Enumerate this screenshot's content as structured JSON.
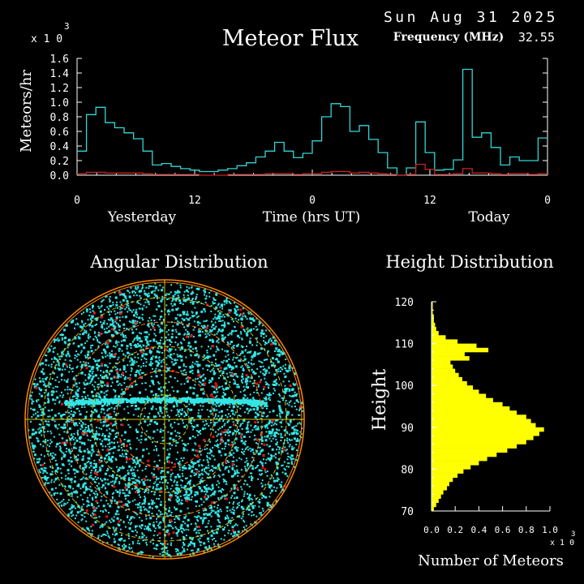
{
  "header": {
    "title": "Meteor Flux",
    "date": "Sun Aug 31 2025",
    "frequency_label": "Frequency (MHz)",
    "frequency_value": "32.55",
    "multiplier_x": "x 1 0",
    "multiplier_exp": "3"
  },
  "colors": {
    "background": "#000000",
    "flux_series": "#33d6d6",
    "secondary_series": "#cc2222",
    "height_bars": "#ffff00",
    "axis": "#ffffff",
    "polar_rings": "#ff8800",
    "polar_rings_inner": "#d4c000",
    "polar_dots": "#33e6e6",
    "polar_red_dots": "#e01010"
  },
  "chart_data": [
    {
      "type": "line",
      "name": "flux",
      "title": "Meteor Flux",
      "ylabel": "Meteors/hr",
      "xlabel": "Time (hrs UT)",
      "x_group_labels": [
        "Yesterday",
        "Time (hrs UT)",
        "Today"
      ],
      "x_tick_labels": [
        "0",
        "12",
        "0",
        "12",
        "0"
      ],
      "x_ticks_hours": [
        0,
        12,
        24,
        36,
        48
      ],
      "y_tick_labels": [
        "0.0",
        "0.2",
        "0.4",
        "0.6",
        "0.8",
        "1.0",
        "1.2",
        "1.4",
        "1.6"
      ],
      "ylim": [
        0,
        1.6
      ],
      "xlim": [
        0,
        48
      ],
      "y_multiplier": "x10^3",
      "step": true,
      "series": [
        {
          "values": [
            0.33,
            0.83,
            0.93,
            0.72,
            0.65,
            0.58,
            0.5,
            0.33,
            0.14,
            0.16,
            0.12,
            0.09,
            0.07,
            0.05,
            0.05,
            0.07,
            0.09,
            0.13,
            0.17,
            0.25,
            0.33,
            0.45,
            0.33,
            0.24,
            0.3,
            0.47,
            0.8,
            0.98,
            0.94,
            0.6,
            0.68,
            0.49,
            0.31,
            0.1,
            0.0,
            0.1,
            0.73,
            0.31,
            0.07,
            0.08,
            0.21,
            1.45,
            0.52,
            0.58,
            0.38,
            0.14,
            0.25,
            0.2,
            0.2,
            0.51
          ]
        },
        {
          "values": [
            0.02,
            0.04,
            0.04,
            0.03,
            0.03,
            0.03,
            0.03,
            0.02,
            0.01,
            0.01,
            0.01,
            0.01,
            0.01,
            0.0,
            0.0,
            0.0,
            0.01,
            0.01,
            0.01,
            0.01,
            0.02,
            0.02,
            0.02,
            0.01,
            0.02,
            0.02,
            0.04,
            0.05,
            0.05,
            0.03,
            0.04,
            0.03,
            0.02,
            0.01,
            0.0,
            0.01,
            0.15,
            0.08,
            0.01,
            0.01,
            0.02,
            0.09,
            0.03,
            0.03,
            0.02,
            0.01,
            0.02,
            0.02,
            0.01,
            0.02
          ]
        }
      ]
    },
    {
      "type": "scatter",
      "name": "angular",
      "title": "Angular Distribution",
      "projection": "polar"
    },
    {
      "type": "bar",
      "name": "height",
      "title": "Height Distribution",
      "orientation": "horizontal",
      "ylabel": "Height",
      "xlabel": "Number of Meteors",
      "x_tick_labels": [
        "0.0",
        "0.2",
        "0.4",
        "0.6",
        "0.8",
        "1.0"
      ],
      "xlim": [
        0,
        1.0
      ],
      "x_multiplier": "x10^3",
      "y_tick_labels": [
        "70",
        "80",
        "90",
        "100",
        "110",
        "120"
      ],
      "ylim": [
        70,
        120
      ],
      "bin_heights": [
        70,
        71,
        72,
        73,
        74,
        75,
        76,
        77,
        78,
        79,
        80,
        81,
        82,
        83,
        84,
        85,
        86,
        87,
        88,
        89,
        90,
        91,
        92,
        93,
        94,
        95,
        96,
        97,
        98,
        99,
        100,
        101,
        102,
        103,
        104,
        105,
        106,
        107,
        108,
        109,
        110,
        111,
        112,
        113,
        114,
        115,
        116,
        117,
        118,
        119
      ],
      "values": [
        0.02,
        0.04,
        0.06,
        0.08,
        0.1,
        0.13,
        0.15,
        0.18,
        0.22,
        0.27,
        0.33,
        0.4,
        0.47,
        0.55,
        0.64,
        0.72,
        0.8,
        0.86,
        0.91,
        0.95,
        0.88,
        0.84,
        0.8,
        0.72,
        0.66,
        0.6,
        0.52,
        0.46,
        0.4,
        0.35,
        0.3,
        0.26,
        0.23,
        0.2,
        0.18,
        0.16,
        0.32,
        0.28,
        0.48,
        0.38,
        0.22,
        0.12,
        0.06,
        0.04,
        0.03,
        0.02,
        0.02,
        0.01,
        0.01,
        0.01
      ]
    }
  ]
}
